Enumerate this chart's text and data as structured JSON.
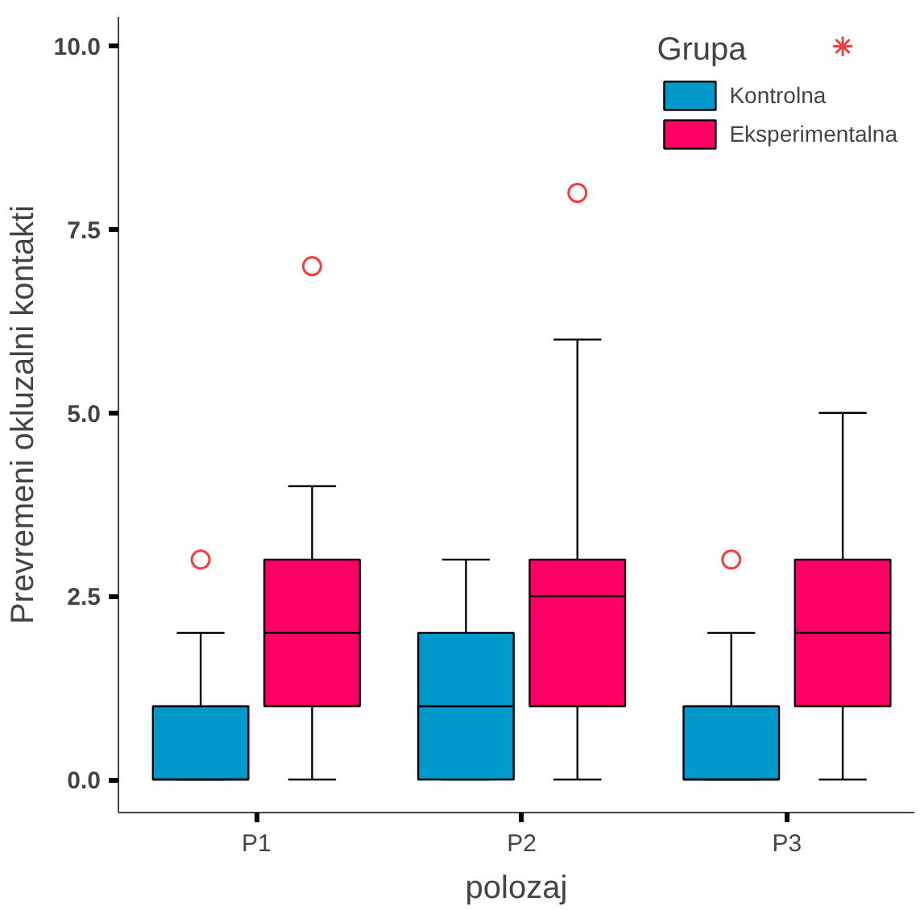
{
  "chart_data": {
    "type": "box",
    "xlabel": "polozaj",
    "ylabel": "Prevremeni okluzalni kontakti",
    "legend_title": "Grupa",
    "legend": "top right",
    "grid": false,
    "categories": [
      "P1",
      "P2",
      "P3"
    ],
    "ylim": [
      -0.45,
      10.4
    ],
    "yticks": [
      {
        "value": 0,
        "label": "0.0"
      },
      {
        "value": 2.5,
        "label": "2.5"
      },
      {
        "value": 5,
        "label": "5.0"
      },
      {
        "value": 7.5,
        "label": "7.5"
      },
      {
        "value": 10,
        "label": "10.0"
      }
    ],
    "series": [
      {
        "name": "Kontrolna",
        "color": "#0099cc",
        "boxes": [
          {
            "low": 0,
            "q1": 0,
            "median": 0,
            "q3": 1,
            "high": 2,
            "outliers": [
              3
            ]
          },
          {
            "low": 0,
            "q1": 0,
            "median": 1,
            "q3": 2,
            "high": 3
          },
          {
            "low": 0,
            "q1": 0,
            "median": 0,
            "q3": 1,
            "high": 2,
            "outliers": [
              3
            ]
          }
        ]
      },
      {
        "name": "Eksperimentalna",
        "color": "#ff0066",
        "boxes": [
          {
            "low": 0,
            "q1": 1,
            "median": 2,
            "q3": 3,
            "high": 4,
            "outliers": [
              7
            ]
          },
          {
            "low": 0,
            "q1": 1,
            "median": 2.5,
            "q3": 3,
            "high": 6,
            "outliers": [
              8
            ]
          },
          {
            "low": 0,
            "q1": 1,
            "median": 2,
            "q3": 3,
            "high": 5,
            "outliers": [
              10
            ]
          }
        ]
      }
    ]
  }
}
